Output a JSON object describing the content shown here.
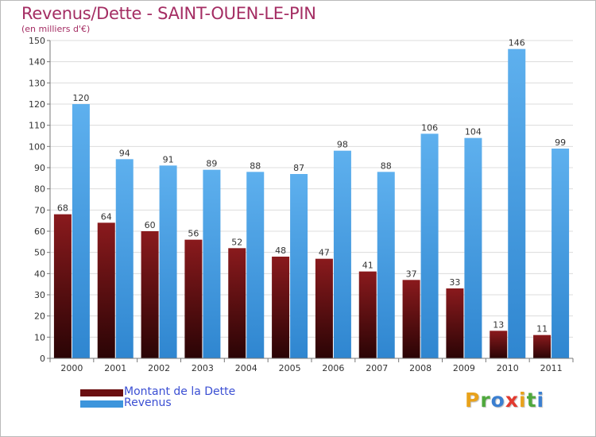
{
  "header": {
    "title": "Revenus/Dette - SAINT-OUEN-LE-PIN",
    "subtitle": "(en milliers d'€)"
  },
  "chart_data": {
    "type": "bar",
    "categories": [
      "2000",
      "2001",
      "2002",
      "2003",
      "2004",
      "2005",
      "2006",
      "2007",
      "2008",
      "2009",
      "2010",
      "2011"
    ],
    "series": [
      {
        "name": "Montant de la Dette",
        "color": "#6b0f11",
        "values": [
          68,
          64,
          60,
          56,
          52,
          48,
          47,
          41,
          37,
          33,
          13,
          11
        ]
      },
      {
        "name": "Revenus",
        "color": "#3d95dc",
        "values": [
          120,
          94,
          91,
          89,
          88,
          87,
          98,
          88,
          106,
          104,
          146,
          99
        ]
      }
    ],
    "ylim": [
      0,
      150
    ],
    "yticks": [
      0,
      10,
      20,
      30,
      40,
      50,
      60,
      70,
      80,
      90,
      100,
      110,
      120,
      130,
      140,
      150
    ],
    "grid": true,
    "legend_position": "bottom-left"
  },
  "legend": {
    "items": [
      {
        "label": "Montant de la Dette",
        "color": "#6b0f11"
      },
      {
        "label": "Revenus",
        "color": "#3d95dc"
      }
    ]
  },
  "logo": {
    "letters": [
      "P",
      "r",
      "o",
      "x",
      "i",
      "t",
      "i"
    ],
    "colors": [
      "#e8a21b",
      "#4fa83d",
      "#3b7fd0",
      "#e23a2f",
      "#e8a21b",
      "#4fa83d",
      "#3b7fd0"
    ]
  }
}
